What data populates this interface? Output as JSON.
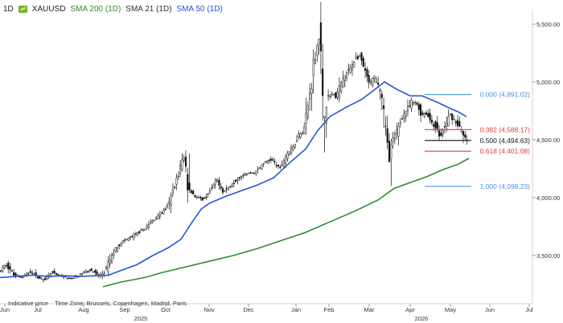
{
  "header": {
    "interval": "1D",
    "symbol": "XAUUSD",
    "indicators": [
      {
        "label": "SMA 200 (1D)",
        "color": "#2e8b2e"
      },
      {
        "label": "SMA 21 (1D)",
        "color": "#333333"
      },
      {
        "label": "SMA 50 (1D)",
        "color": "#2554d8"
      }
    ]
  },
  "footer": {
    "indicative": "Indicative price",
    "timezone": "Time Zone: Brussels, Copenhagen, Madrid, Paris"
  },
  "colors": {
    "candle": "#111111",
    "sma50": "#2554d8",
    "sma200": "#2e8b2e",
    "fib_blue": "#4a90e2",
    "fib_red": "#e03a3a",
    "fib_black": "#111111"
  },
  "chart_data": {
    "type": "candlestick",
    "x_ticks": [
      "Jun",
      "Jul",
      "Aug",
      "Sep",
      "Oct",
      "Nov",
      "Dec",
      "Jan",
      "Feb",
      "Mar",
      "Apr",
      "May",
      "Jun",
      "Jul"
    ],
    "year_labels": [
      "2025",
      "2026"
    ],
    "y_ticks": [
      "5,500.00",
      "5,000.00",
      "4,500.00",
      "4,000.00",
      "3,500.00"
    ],
    "ylim": [
      3230,
      5620
    ],
    "price_anchors": [
      [
        0,
        3350
      ],
      [
        10,
        3420
      ],
      [
        20,
        3330
      ],
      [
        30,
        3310
      ],
      [
        40,
        3360
      ],
      [
        50,
        3310
      ],
      [
        58,
        3290
      ],
      [
        65,
        3360
      ],
      [
        72,
        3330
      ],
      [
        79,
        3320
      ],
      [
        87,
        3300
      ],
      [
        95,
        3310
      ],
      [
        105,
        3350
      ],
      [
        115,
        3380
      ],
      [
        125,
        3320
      ],
      [
        132,
        3350
      ],
      [
        140,
        3480
      ],
      [
        147,
        3570
      ],
      [
        155,
        3620
      ],
      [
        165,
        3660
      ],
      [
        175,
        3700
      ],
      [
        185,
        3750
      ],
      [
        195,
        3820
      ],
      [
        205,
        3880
      ],
      [
        212,
        3940
      ],
      [
        218,
        4080
      ],
      [
        224,
        4200
      ],
      [
        228,
        4310
      ],
      [
        232,
        4350
      ],
      [
        236,
        4090
      ],
      [
        245,
        4010
      ],
      [
        255,
        3980
      ],
      [
        265,
        4070
      ],
      [
        272,
        4160
      ],
      [
        280,
        4050
      ],
      [
        290,
        4110
      ],
      [
        300,
        4180
      ],
      [
        310,
        4210
      ],
      [
        320,
        4220
      ],
      [
        330,
        4300
      ],
      [
        340,
        4330
      ],
      [
        350,
        4250
      ],
      [
        358,
        4370
      ],
      [
        366,
        4430
      ],
      [
        374,
        4550
      ],
      [
        380,
        4590
      ],
      [
        385,
        4800
      ],
      [
        389,
        4950
      ],
      [
        392,
        5150
      ],
      [
        396,
        5300
      ],
      [
        400,
        5450
      ],
      [
        404,
        4600
      ],
      [
        408,
        4850
      ],
      [
        414,
        4900
      ],
      [
        420,
        4870
      ],
      [
        428,
        5020
      ],
      [
        436,
        5100
      ],
      [
        444,
        5200
      ],
      [
        450,
        5220
      ],
      [
        456,
        5080
      ],
      [
        462,
        4980
      ],
      [
        468,
        5040
      ],
      [
        474,
        4960
      ],
      [
        478,
        4820
      ],
      [
        482,
        4550
      ],
      [
        486,
        4350
      ],
      [
        490,
        4480
      ],
      [
        496,
        4580
      ],
      [
        502,
        4700
      ],
      [
        508,
        4760
      ],
      [
        514,
        4820
      ],
      [
        520,
        4820
      ],
      [
        526,
        4720
      ],
      [
        532,
        4730
      ],
      [
        538,
        4660
      ],
      [
        544,
        4610
      ],
      [
        550,
        4520
      ],
      [
        556,
        4620
      ],
      [
        562,
        4720
      ],
      [
        568,
        4660
      ],
      [
        574,
        4610
      ],
      [
        578,
        4530
      ],
      [
        582,
        4500
      ]
    ],
    "sma50": [
      [
        0,
        3310
      ],
      [
        20,
        3320
      ],
      [
        40,
        3330
      ],
      [
        60,
        3320
      ],
      [
        80,
        3325
      ],
      [
        100,
        3320
      ],
      [
        120,
        3325
      ],
      [
        135,
        3330
      ],
      [
        150,
        3370
      ],
      [
        170,
        3420
      ],
      [
        190,
        3500
      ],
      [
        210,
        3570
      ],
      [
        225,
        3640
      ],
      [
        240,
        3800
      ],
      [
        250,
        3900
      ],
      [
        260,
        3950
      ],
      [
        280,
        4010
      ],
      [
        300,
        4060
      ],
      [
        320,
        4110
      ],
      [
        340,
        4170
      ],
      [
        360,
        4300
      ],
      [
        380,
        4420
      ],
      [
        395,
        4580
      ],
      [
        410,
        4700
      ],
      [
        430,
        4780
      ],
      [
        450,
        4850
      ],
      [
        465,
        4930
      ],
      [
        478,
        5000
      ],
      [
        495,
        4930
      ],
      [
        510,
        4880
      ],
      [
        525,
        4880
      ],
      [
        545,
        4820
      ],
      [
        560,
        4770
      ],
      [
        570,
        4740
      ],
      [
        580,
        4700
      ]
    ],
    "sma200": [
      [
        128,
        3230
      ],
      [
        150,
        3270
      ],
      [
        180,
        3310
      ],
      [
        200,
        3350
      ],
      [
        230,
        3400
      ],
      [
        260,
        3450
      ],
      [
        290,
        3500
      ],
      [
        320,
        3560
      ],
      [
        350,
        3630
      ],
      [
        380,
        3700
      ],
      [
        410,
        3790
      ],
      [
        440,
        3880
      ],
      [
        470,
        3980
      ],
      [
        490,
        4080
      ],
      [
        510,
        4130
      ],
      [
        530,
        4180
      ],
      [
        550,
        4240
      ],
      [
        570,
        4290
      ],
      [
        583,
        4340
      ]
    ],
    "fibonacci": [
      {
        "level": "0.000",
        "value": 4891.02,
        "label": "0.000 (4,891.02)",
        "color": "blue"
      },
      {
        "level": "0.382",
        "value": 4588.17,
        "label": "0.382 (4,588.17)",
        "color": "red"
      },
      {
        "level": "0.500",
        "value": 4494.63,
        "label": "0.500 (4,494.63)",
        "color": "black"
      },
      {
        "level": "0.618",
        "value": 4401.08,
        "label": "0.618 (4,401.08)",
        "color": "red"
      },
      {
        "level": "1.000",
        "value": 4098.23,
        "label": "1.000 (4,098.23)",
        "color": "blue"
      }
    ]
  }
}
